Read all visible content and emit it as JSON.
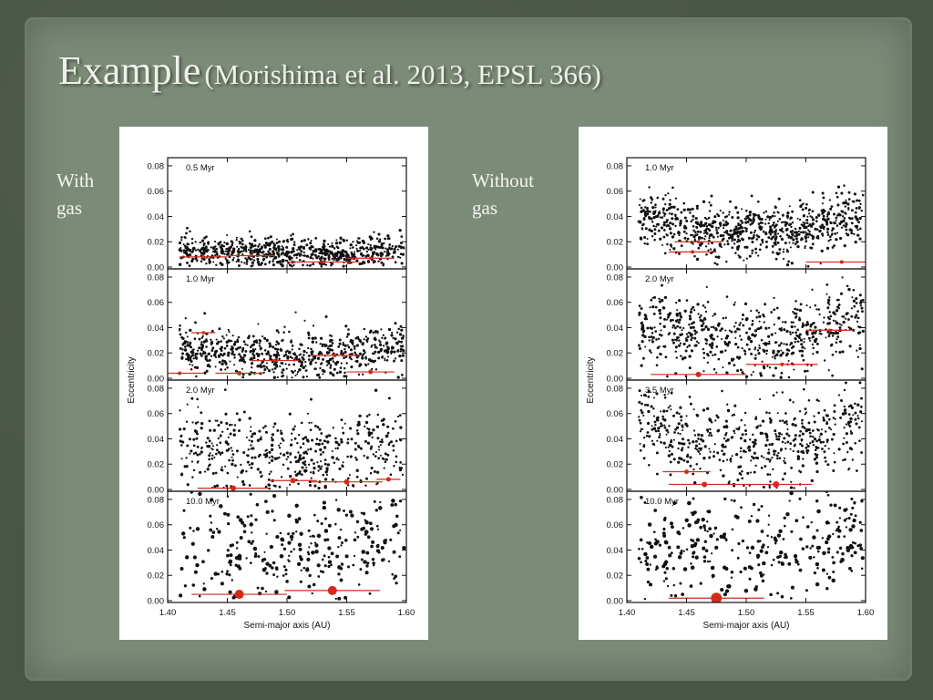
{
  "slide": {
    "title_main": "Example",
    "title_citation": "(Morishima et al. 2013, EPSL 366)",
    "label_left_line1": "With",
    "label_left_line2": "gas",
    "label_right_line1": "Without",
    "label_right_line2": "gas"
  },
  "colors": {
    "background": "#4a5645",
    "panel": "#7c8a78",
    "title": "#eef1ea",
    "points": "#111111",
    "embryos": "#d42a1c"
  },
  "chart_data": [
    {
      "type": "scatter",
      "panel_set": "with gas",
      "xlabel": "Semi-major axis (AU)",
      "ylabel": "Eccentricity",
      "xlim": [
        1.4,
        1.6
      ],
      "ylim": [
        0.0,
        0.085
      ],
      "x_ticks": [
        "1.40",
        "1.45",
        "1.50",
        "1.55",
        "1.60"
      ],
      "y_ticks": [
        "0.00",
        "0.02",
        "0.04",
        "0.06",
        "0.08"
      ],
      "panels": [
        {
          "label": "0.5 Myr",
          "particles": {
            "count": 700,
            "e_mean": 0.011,
            "e_spread": 0.006,
            "e_edge_boost": 0.002
          },
          "embryos": [
            {
              "a": 1.43,
              "e": 0.008,
              "spread": 0.02,
              "r": 1.8
            },
            {
              "a": 1.47,
              "e": 0.009,
              "spread": 0.02,
              "r": 1.8
            },
            {
              "a": 1.53,
              "e": 0.004,
              "spread": 0.03,
              "r": 1.8
            },
            {
              "a": 1.57,
              "e": 0.007,
              "spread": 0.02,
              "r": 1.8
            }
          ]
        },
        {
          "label": "1.0 Myr",
          "particles": {
            "count": 650,
            "e_mean": 0.018,
            "e_spread": 0.009,
            "e_edge_boost": 0.004
          },
          "embryos": [
            {
              "a": 1.41,
              "e": 0.004,
              "spread": 0.02,
              "r": 2
            },
            {
              "a": 1.43,
              "e": 0.036,
              "spread": 0.01,
              "r": 1.8
            },
            {
              "a": 1.46,
              "e": 0.004,
              "spread": 0.02,
              "r": 2.5
            },
            {
              "a": 1.49,
              "e": 0.014,
              "spread": 0.02,
              "r": 2
            },
            {
              "a": 1.54,
              "e": 0.018,
              "spread": 0.02,
              "r": 2
            },
            {
              "a": 1.57,
              "e": 0.005,
              "spread": 0.02,
              "r": 2.5
            }
          ]
        },
        {
          "label": "2.0 Myr",
          "particles": {
            "count": 480,
            "e_mean": 0.028,
            "e_spread": 0.015,
            "e_edge_boost": 0.006
          },
          "embryos": [
            {
              "a": 1.455,
              "e": 0.001,
              "spread": 0.03,
              "r": 3
            },
            {
              "a": 1.505,
              "e": 0.007,
              "spread": 0.02,
              "r": 3
            },
            {
              "a": 1.55,
              "e": 0.006,
              "spread": 0.03,
              "r": 3
            },
            {
              "a": 1.585,
              "e": 0.008,
              "spread": 0.01,
              "r": 2.5
            }
          ]
        },
        {
          "label": "10.0 Myr",
          "particles": {
            "count": 300,
            "e_mean": 0.038,
            "e_spread": 0.022,
            "e_edge_boost": 0.004
          },
          "embryos": [
            {
              "a": 1.46,
              "e": 0.005,
              "spread": 0.04,
              "r": 5
            },
            {
              "a": 1.538,
              "e": 0.008,
              "spread": 0.04,
              "r": 5
            }
          ]
        }
      ]
    },
    {
      "type": "scatter",
      "panel_set": "without gas",
      "xlabel": "Semi-major axis (AU)",
      "ylabel": "Eccentricity",
      "xlim": [
        1.4,
        1.6
      ],
      "ylim": [
        0.0,
        0.085
      ],
      "x_ticks": [
        "1.40",
        "1.45",
        "1.50",
        "1.55",
        "1.60"
      ],
      "y_ticks": [
        "0.00",
        "0.02",
        "0.04",
        "0.06",
        "0.08"
      ],
      "panels": [
        {
          "label": "1.0 Myr",
          "particles": {
            "count": 750,
            "e_mean": 0.027,
            "e_spread": 0.011,
            "e_edge_boost": 0.008
          },
          "embryos": [
            {
              "a": 1.455,
              "e": 0.012,
              "spread": 0.02,
              "r": 2
            },
            {
              "a": 1.46,
              "e": 0.02,
              "spread": 0.02,
              "r": 1.8
            },
            {
              "a": 1.58,
              "e": 0.004,
              "spread": 0.03,
              "r": 2
            }
          ]
        },
        {
          "label": "2.0 Myr",
          "particles": {
            "count": 620,
            "e_mean": 0.03,
            "e_spread": 0.014,
            "e_edge_boost": 0.01
          },
          "embryos": [
            {
              "a": 1.46,
              "e": 0.003,
              "spread": 0.04,
              "r": 3
            },
            {
              "a": 1.53,
              "e": 0.011,
              "spread": 0.03,
              "r": 2
            },
            {
              "a": 1.57,
              "e": 0.038,
              "spread": 0.02,
              "r": 1.8
            }
          ]
        },
        {
          "label": "3.5 Myr",
          "particles": {
            "count": 560,
            "e_mean": 0.034,
            "e_spread": 0.016,
            "e_edge_boost": 0.012
          },
          "embryos": [
            {
              "a": 1.45,
              "e": 0.014,
              "spread": 0.02,
              "r": 2.5
            },
            {
              "a": 1.465,
              "e": 0.004,
              "spread": 0.03,
              "r": 3
            },
            {
              "a": 1.525,
              "e": 0.004,
              "spread": 0.03,
              "r": 3.5
            }
          ]
        },
        {
          "label": "10.0 Myr",
          "particles": {
            "count": 320,
            "e_mean": 0.04,
            "e_spread": 0.02,
            "e_edge_boost": 0.006
          },
          "embryos": [
            {
              "a": 1.475,
              "e": 0.002,
              "spread": 0.04,
              "r": 6
            }
          ]
        }
      ]
    }
  ]
}
